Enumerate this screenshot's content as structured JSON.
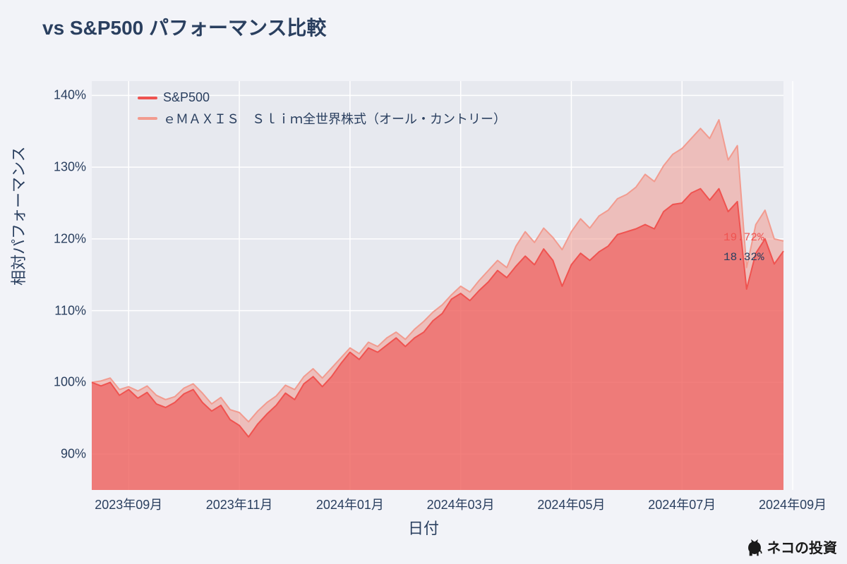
{
  "chart": {
    "type": "area",
    "title": "vs S&P500 パフォーマンス比較",
    "title_fontsize": 28,
    "title_color": "#2a3f5f",
    "background_color": "#f2f3f8",
    "plot_background_color": "#e7e9ef",
    "grid_color": "#ffffff",
    "axis_label_color": "#2a3f5f",
    "tick_fontsize": 18,
    "axis_title_fontsize": 22,
    "x_axis": {
      "title": "日付",
      "tick_labels": [
        "2023年09月",
        "2023年11月",
        "2024年01月",
        "2024年03月",
        "2024年05月",
        "2024年07月",
        "2024年09月"
      ],
      "tick_positions_idx": [
        4,
        16,
        28,
        40,
        52,
        64,
        76
      ]
    },
    "y_axis": {
      "title": "相対パフォーマンス",
      "min": 85,
      "max": 142,
      "ticks": [
        90,
        100,
        110,
        120,
        130,
        140
      ],
      "tick_labels": [
        "90%",
        "100%",
        "110%",
        "120%",
        "130%",
        "140%"
      ]
    },
    "legend": {
      "position": "top-left-inside",
      "items": [
        {
          "label": "S&P500",
          "color": "#ef5350",
          "fill_opacity": 0.62
        },
        {
          "label": "ｅＭＡＸＩＳ　Ｓｌｉｍ全世界株式（オール・カントリー）",
          "color": "#f29b8f",
          "fill_opacity": 0.55
        }
      ]
    },
    "end_labels": [
      {
        "text": "19.72%",
        "color": "#ef5350",
        "y_value": 119.7
      },
      {
        "text": "18.32%",
        "color": "#2a3f5f",
        "y_value": 118.3
      }
    ],
    "watermark": "ネコの投資",
    "series": [
      {
        "name": "eMAXIS Slim 全世界株式",
        "color_line": "#f29b8f",
        "color_fill": "#f29b8f",
        "fill_opacity": 0.55,
        "line_width": 2,
        "data": [
          100.0,
          100.2,
          100.6,
          99.0,
          99.4,
          98.8,
          99.5,
          98.2,
          97.6,
          98.0,
          99.2,
          99.8,
          98.5,
          97.0,
          97.9,
          96.2,
          95.8,
          94.5,
          96.0,
          97.2,
          98.1,
          99.6,
          99.0,
          100.8,
          101.9,
          100.6,
          102.0,
          103.4,
          104.8,
          104.0,
          105.6,
          105.0,
          106.2,
          107.0,
          106.0,
          107.4,
          108.5,
          109.8,
          110.8,
          112.2,
          113.4,
          112.6,
          114.2,
          115.6,
          117.0,
          116.0,
          119.0,
          121.0,
          119.5,
          121.5,
          120.2,
          118.5,
          121.0,
          122.8,
          121.5,
          123.2,
          124.0,
          125.6,
          126.2,
          127.2,
          129.0,
          128.0,
          130.2,
          131.8,
          132.6,
          134.0,
          135.4,
          134.0,
          136.6,
          131.0,
          133.0,
          116.0,
          122.0,
          124.0,
          120.0,
          119.7
        ]
      },
      {
        "name": "S&P500",
        "color_line": "#ef5350",
        "color_fill": "#ef5350",
        "fill_opacity": 0.62,
        "line_width": 2,
        "data": [
          100.0,
          99.5,
          100.0,
          98.2,
          99.0,
          97.8,
          98.6,
          97.0,
          96.5,
          97.2,
          98.4,
          99.0,
          97.2,
          96.0,
          96.8,
          94.8,
          94.0,
          92.4,
          94.2,
          95.6,
          96.8,
          98.5,
          97.6,
          99.8,
          100.8,
          99.4,
          100.8,
          102.6,
          104.2,
          103.2,
          104.8,
          104.2,
          105.2,
          106.2,
          105.0,
          106.2,
          107.0,
          108.6,
          109.6,
          111.6,
          112.4,
          111.4,
          112.8,
          114.0,
          115.6,
          114.6,
          116.2,
          117.6,
          116.4,
          118.6,
          117.0,
          113.4,
          116.4,
          118.0,
          117.0,
          118.2,
          119.0,
          120.6,
          121.0,
          121.4,
          122.0,
          121.4,
          123.8,
          124.8,
          125.0,
          126.4,
          127.0,
          125.4,
          127.0,
          123.8,
          125.2,
          113.0,
          118.0,
          120.0,
          116.5,
          118.3
        ]
      }
    ]
  }
}
